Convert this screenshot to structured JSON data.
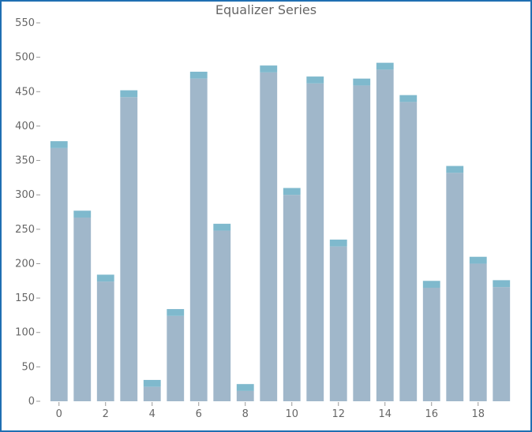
{
  "chart_data": {
    "type": "bar",
    "title": "Equalizer Series",
    "xlabel": "",
    "ylabel": "",
    "x": [
      0,
      1,
      2,
      3,
      4,
      5,
      6,
      7,
      8,
      9,
      10,
      11,
      12,
      13,
      14,
      15,
      16,
      17,
      18,
      19
    ],
    "x_tick_labels": [
      "0",
      "2",
      "4",
      "6",
      "8",
      "10",
      "12",
      "14",
      "16",
      "18"
    ],
    "y_tick_labels": [
      "0",
      "50",
      "100",
      "150",
      "200",
      "250",
      "300",
      "350",
      "400",
      "450",
      "500",
      "550"
    ],
    "ylim": [
      0,
      550
    ],
    "xlim": [
      -0.5,
      19.5
    ],
    "segment_height": 10,
    "values": [
      378,
      277,
      184,
      452,
      31,
      134,
      479,
      258,
      25,
      488,
      310,
      472,
      235,
      469,
      492,
      445,
      175,
      342,
      210,
      176
    ],
    "colors": {
      "bar": "#a0b7ca",
      "cap": "#7fb9cd",
      "axis": "#999999"
    },
    "grid": false,
    "legend": "none"
  }
}
